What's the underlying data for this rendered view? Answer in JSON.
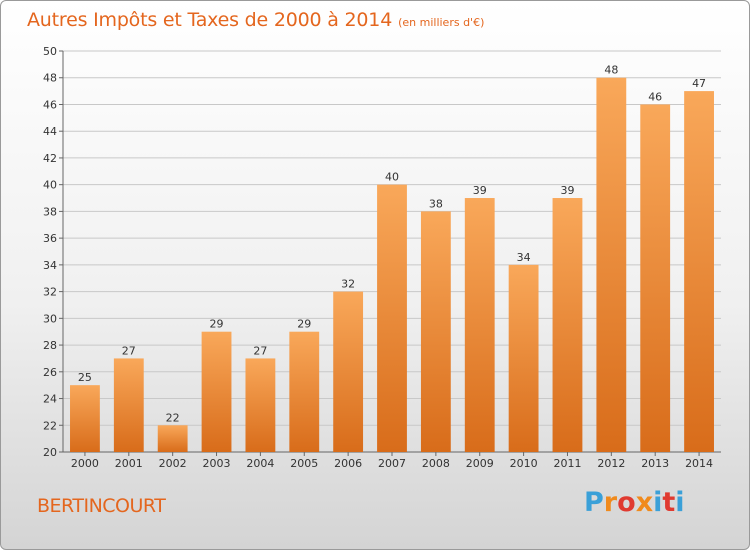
{
  "title": "Autres Impôts et Taxes de 2000 à 2014",
  "unit": "(en milliers d'€)",
  "commune": "BERTINCOURT",
  "logo": {
    "text": "Proxiti",
    "colors": [
      "#3aa0d8",
      "#f08a1c",
      "#e03a30",
      "#f08a1c",
      "#3aa0d8",
      "#e03a30",
      "#3aa0d8"
    ]
  },
  "colors": {
    "title": "#e4661e",
    "bar_top": "#f9a85a",
    "bar_bottom": "#d86c1a",
    "grid": "#c8c8c8"
  },
  "chart_data": {
    "type": "bar",
    "categories": [
      "2000",
      "2001",
      "2002",
      "2003",
      "2004",
      "2005",
      "2006",
      "2007",
      "2008",
      "2009",
      "2010",
      "2011",
      "2012",
      "2013",
      "2014"
    ],
    "values": [
      25,
      27,
      22,
      29,
      27,
      29,
      32,
      40,
      38,
      39,
      34,
      39,
      48,
      46,
      47
    ],
    "ylim": [
      20,
      50
    ],
    "yticks": [
      20,
      22,
      24,
      26,
      28,
      30,
      32,
      34,
      36,
      38,
      40,
      42,
      44,
      46,
      48,
      50
    ],
    "grid": true,
    "legend": "none"
  }
}
